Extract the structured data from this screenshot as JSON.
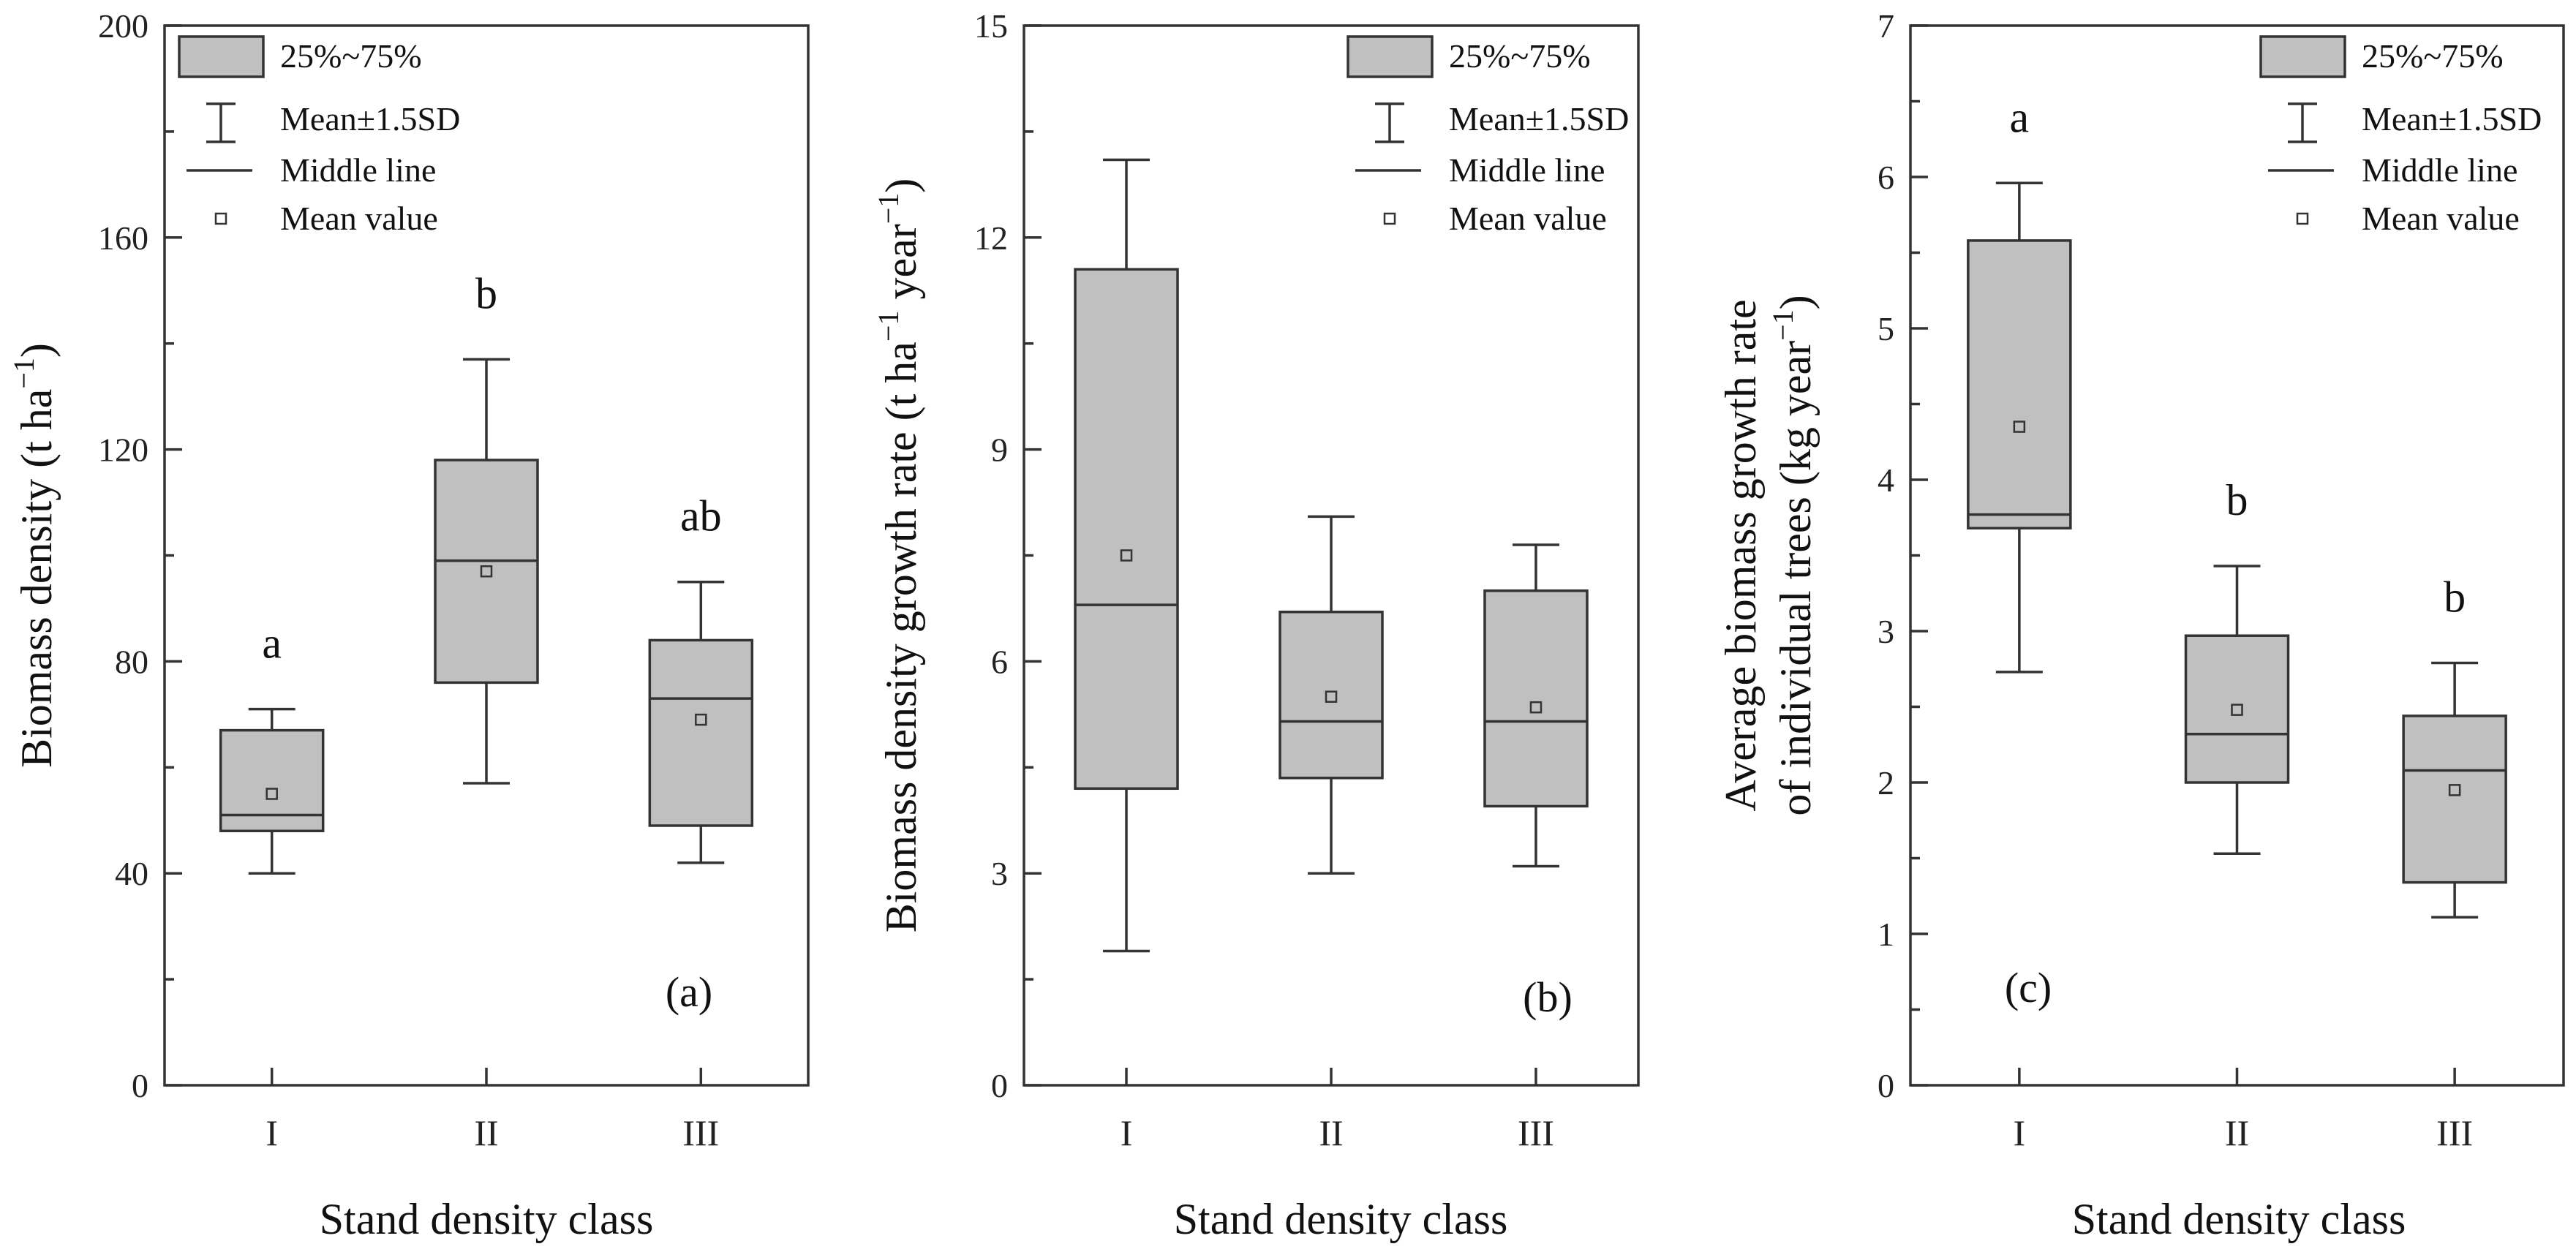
{
  "colors": {
    "box_fill": "#c0c0c0",
    "stroke": "#333333",
    "text": "#111111"
  },
  "legend": {
    "box": "25%~75%",
    "whisker": "Mean±1.5SD",
    "median": "Middle line",
    "mean": "Mean value"
  },
  "chart_data": [
    {
      "type": "box",
      "panel": "(a)",
      "xlabel": "Stand density class",
      "ylabel_main": "Biomass density (t ha",
      "ylabel_sup": "−1",
      "ylabel_end": ")",
      "ylim": [
        0,
        200
      ],
      "yticks": [
        0,
        40,
        80,
        120,
        160,
        200
      ],
      "categories": [
        "I",
        "II",
        "III"
      ],
      "boxes": [
        {
          "category": "I",
          "q1": 48,
          "median": 51,
          "q3": 67,
          "mean": 55,
          "whisker_low": 40,
          "whisker_high": 71,
          "letter": "a"
        },
        {
          "category": "II",
          "q1": 76,
          "median": 99,
          "q3": 118,
          "mean": 97,
          "whisker_low": 57,
          "whisker_high": 137,
          "letter": "b"
        },
        {
          "category": "III",
          "q1": 49,
          "median": 73,
          "q3": 84,
          "mean": 69,
          "whisker_low": 42,
          "whisker_high": 95,
          "letter": "ab"
        }
      ]
    },
    {
      "type": "box",
      "panel": "(b)",
      "xlabel": "Stand density class",
      "ylabel_main": "Biomass density growth rate (t ha",
      "ylabel_sup": "−1",
      "ylabel_mid": " year",
      "ylabel_sup2": "−1",
      "ylabel_end": ")",
      "ylim": [
        0,
        15
      ],
      "yticks": [
        0,
        3,
        6,
        9,
        12,
        15
      ],
      "categories": [
        "I",
        "II",
        "III"
      ],
      "boxes": [
        {
          "category": "I",
          "q1": 4.2,
          "median": 6.8,
          "q3": 11.55,
          "mean": 7.5,
          "whisker_low": 1.9,
          "whisker_high": 13.1
        },
        {
          "category": "II",
          "q1": 4.35,
          "median": 5.15,
          "q3": 6.7,
          "mean": 5.5,
          "whisker_low": 3.0,
          "whisker_high": 8.05
        },
        {
          "category": "III",
          "q1": 3.95,
          "median": 5.15,
          "q3": 7.0,
          "mean": 5.35,
          "whisker_low": 3.1,
          "whisker_high": 7.65
        }
      ]
    },
    {
      "type": "box",
      "panel": "(c)",
      "xlabel": "Stand density class",
      "ylabel_line1": "Average biomass growth rate",
      "ylabel_main": "of individual trees (kg year",
      "ylabel_sup": "−1",
      "ylabel_end": ")",
      "ylim": [
        0,
        7
      ],
      "yticks": [
        0,
        1,
        2,
        3,
        4,
        5,
        6,
        7
      ],
      "categories": [
        "I",
        "II",
        "III"
      ],
      "boxes": [
        {
          "category": "I",
          "q1": 3.68,
          "median": 3.77,
          "q3": 5.58,
          "mean": 4.35,
          "whisker_low": 2.73,
          "whisker_high": 5.96,
          "letter": "a"
        },
        {
          "category": "II",
          "q1": 2.0,
          "median": 2.32,
          "q3": 2.97,
          "mean": 2.48,
          "whisker_low": 1.53,
          "whisker_high": 3.43,
          "letter": "b"
        },
        {
          "category": "III",
          "q1": 1.34,
          "median": 2.08,
          "q3": 2.44,
          "mean": 1.95,
          "whisker_low": 1.11,
          "whisker_high": 2.79,
          "letter": "b"
        }
      ]
    }
  ]
}
